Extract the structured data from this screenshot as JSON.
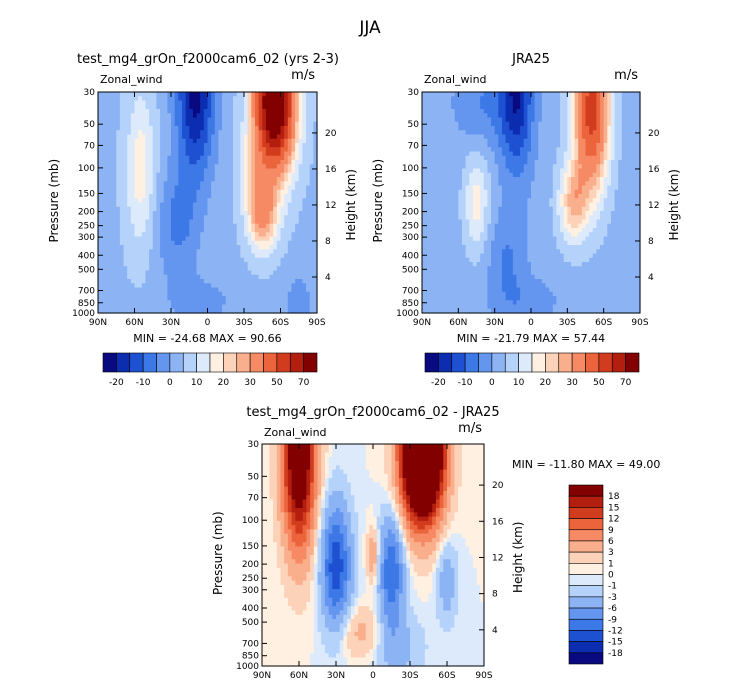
{
  "figure_title": "JJA",
  "panels": [
    {
      "title": "test_mg4_grOn_f2000cam6_02 (yrs 2-3)",
      "variable": "Zonal_wind",
      "units": "m/s",
      "ylabel": "Pressure (mb)",
      "ylabel_right": "Height (km)",
      "stats": "MIN = -24.68   MAX =  90.66"
    },
    {
      "title": "JRA25",
      "variable": "Zonal_wind",
      "units": "m/s",
      "ylabel": "Pressure (mb)",
      "ylabel_right": "Height (km)",
      "stats": "MIN = -21.79   MAX =  57.44"
    },
    {
      "title": "test_mg4_grOn_f2000cam6_02 - JRA25",
      "variable": "Zonal_wind",
      "units": "m/s",
      "ylabel": "Pressure (mb)",
      "ylabel_right": "Height (km)",
      "stats": "MIN = -11.80   MAX =  49.00"
    }
  ],
  "chart_data": [
    {
      "type": "heatmap",
      "title": "test_mg4_grOn_f2000cam6_02 (yrs 2-3)",
      "xlabel": "",
      "ylabel": "Pressure (mb)",
      "y2label": "Height (km)",
      "x_ticks": [
        "90N",
        "60N",
        "30N",
        "0",
        "30S",
        "60S",
        "90S"
      ],
      "y_ticks": [
        "30",
        "50",
        "70",
        "100",
        "150",
        "200",
        "250",
        "300",
        "400",
        "500",
        "700",
        "850",
        "1000"
      ],
      "y2_ticks": [
        "4",
        "8",
        "12",
        "16",
        "20"
      ],
      "xlim": [
        90,
        -90
      ],
      "ylim": [
        1000,
        30
      ],
      "yscale": "log",
      "min": -24.68,
      "max": 90.66
    },
    {
      "type": "heatmap",
      "title": "JRA25",
      "xlabel": "",
      "ylabel": "Pressure (mb)",
      "y2label": "Height (km)",
      "x_ticks": [
        "90N",
        "60N",
        "30N",
        "0",
        "30S",
        "60S",
        "90S"
      ],
      "y_ticks": [
        "30",
        "50",
        "70",
        "100",
        "150",
        "200",
        "250",
        "300",
        "400",
        "500",
        "700",
        "850",
        "1000"
      ],
      "y2_ticks": [
        "4",
        "8",
        "12",
        "16",
        "20"
      ],
      "xlim": [
        90,
        -90
      ],
      "ylim": [
        1000,
        30
      ],
      "yscale": "log",
      "min": -21.79,
      "max": 57.44
    },
    {
      "type": "heatmap",
      "title": "test_mg4_grOn_f2000cam6_02 - JRA25",
      "xlabel": "",
      "ylabel": "Pressure (mb)",
      "y2label": "Height (km)",
      "x_ticks": [
        "90N",
        "60N",
        "30N",
        "0",
        "30S",
        "60S",
        "90S"
      ],
      "y_ticks": [
        "30",
        "50",
        "70",
        "100",
        "150",
        "200",
        "250",
        "300",
        "400",
        "500",
        "700",
        "850",
        "1000"
      ],
      "y2_ticks": [
        "4",
        "8",
        "12",
        "16",
        "20"
      ],
      "xlim": [
        90,
        -90
      ],
      "ylim": [
        1000,
        30
      ],
      "yscale": "log",
      "min": -11.8,
      "max": 49.0
    }
  ],
  "colorbars": [
    {
      "orientation": "horizontal",
      "labels": [
        "-20",
        "-10",
        "0",
        "10",
        "20",
        "30",
        "50",
        "70"
      ],
      "colors": [
        "#0a0a80",
        "#0d2db0",
        "#1e50d2",
        "#3c78e6",
        "#6496f0",
        "#8cb4f5",
        "#b4d2fa",
        "#dceafc",
        "#fff0e1",
        "#fcd2b9",
        "#faaf8c",
        "#f58a64",
        "#eb643c",
        "#d23c1e",
        "#b41e0f",
        "#820000"
      ]
    },
    {
      "orientation": "horizontal",
      "labels": [
        "-20",
        "-10",
        "0",
        "10",
        "20",
        "30",
        "50",
        "70"
      ],
      "colors": [
        "#0a0a80",
        "#0d2db0",
        "#1e50d2",
        "#3c78e6",
        "#6496f0",
        "#8cb4f5",
        "#b4d2fa",
        "#dceafc",
        "#fff0e1",
        "#fcd2b9",
        "#faaf8c",
        "#f58a64",
        "#eb643c",
        "#d23c1e",
        "#b41e0f",
        "#820000"
      ]
    },
    {
      "orientation": "vertical",
      "labels": [
        "18",
        "15",
        "12",
        "9",
        "6",
        "3",
        "1",
        "0",
        "-1",
        "-3",
        "-6",
        "-9",
        "-12",
        "-15",
        "-18"
      ],
      "colors": [
        "#820000",
        "#b41e0f",
        "#d23c1e",
        "#eb643c",
        "#f58a64",
        "#faaf8c",
        "#fcd2b9",
        "#fff0e1",
        "#dceafc",
        "#b4d2fa",
        "#8cb4f5",
        "#6496f0",
        "#3c78e6",
        "#1e50d2",
        "#0d2db0",
        "#0a0a80"
      ]
    }
  ]
}
